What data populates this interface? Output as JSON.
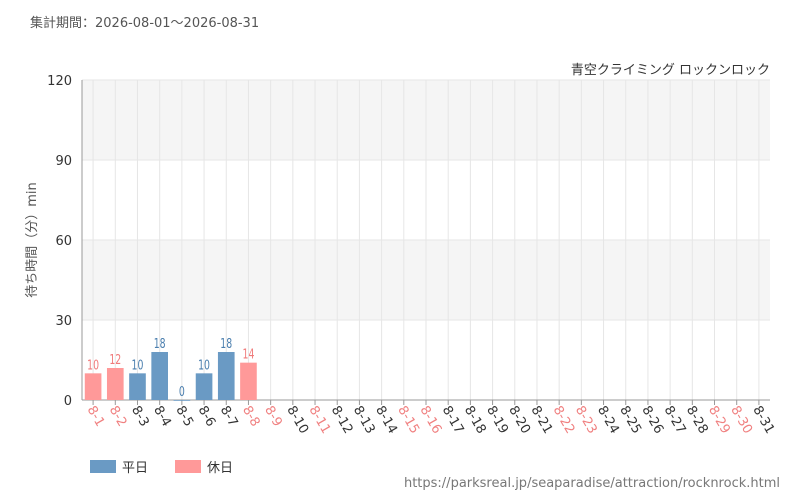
{
  "chart_data": {
    "type": "bar",
    "title": "集計期間：2026-08-01～2026-08-31",
    "subtitle": "青空クライミング ロックンロック",
    "y_label": "待ち時間（分）min",
    "source": "https://parksreal.jp/seaparadise/attraction/rocknrock.html",
    "categories": [
      "8-1",
      "8-2",
      "8-3",
      "8-4",
      "8-5",
      "8-6",
      "8-7",
      "8-8",
      "8-9",
      "8-10",
      "8-11",
      "8-12",
      "8-13",
      "8-14",
      "8-15",
      "8-16",
      "8-17",
      "8-18",
      "8-19",
      "8-20",
      "8-21",
      "8-22",
      "8-23",
      "8-24",
      "8-25",
      "8-26",
      "8-27",
      "8-28",
      "8-29",
      "8-30",
      "8-31"
    ],
    "category_colors": [
      "#f08080",
      "#f08080",
      "#333333",
      "#333333",
      "#333333",
      "#333333",
      "#333333",
      "#f08080",
      "#f08080",
      "#333333",
      "#f08080",
      "#333333",
      "#333333",
      "#333333",
      "#f08080",
      "#f08080",
      "#333333",
      "#333333",
      "#333333",
      "#333333",
      "#333333",
      "#f08080",
      "#f08080",
      "#333333",
      "#333333",
      "#333333",
      "#333333",
      "#333333",
      "#f08080",
      "#f08080",
      "#333333"
    ],
    "series": [
      {
        "name": "平日",
        "color": "#6a9ac4",
        "label_color": "#4a7eae",
        "values": [
          null,
          null,
          10,
          18,
          0,
          10,
          18,
          null,
          null,
          null,
          null,
          null,
          null,
          null,
          null,
          null,
          null,
          null,
          null,
          null,
          null,
          null,
          null,
          null,
          null,
          null,
          null,
          null,
          null,
          null,
          null
        ]
      },
      {
        "name": "休日",
        "color": "#ff9999",
        "label_color": "#f07a7a",
        "values": [
          10,
          12,
          null,
          null,
          null,
          null,
          null,
          14,
          null,
          null,
          null,
          null,
          null,
          null,
          null,
          null,
          null,
          null,
          null,
          null,
          null,
          null,
          null,
          null,
          null,
          null,
          null,
          null,
          null,
          null,
          null
        ]
      }
    ],
    "ylim": [
      0,
      120
    ],
    "yticks": [
      0,
      30,
      60,
      90,
      120
    ],
    "grid": true
  }
}
